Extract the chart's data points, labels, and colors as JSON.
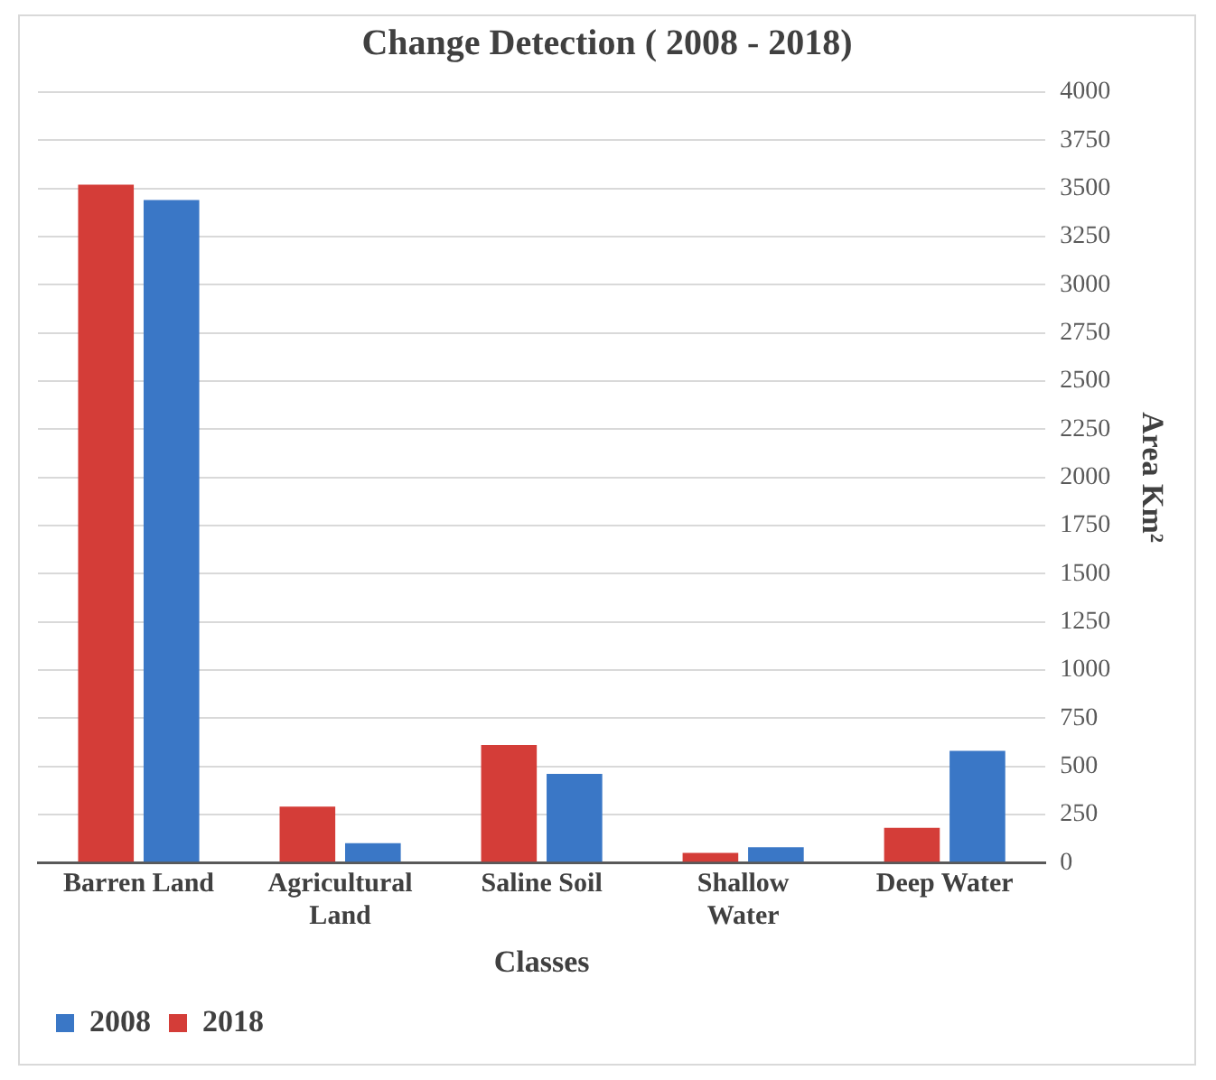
{
  "chart_data": {
    "type": "bar",
    "title": "Change Detection ( 2008 - 2018)",
    "xlabel": "Classes",
    "ylabel": "Area Km²",
    "categories": [
      "Barren Land",
      "Agricultural Land",
      "Saline Soil",
      "Shallow Water",
      "Deep Water"
    ],
    "series": [
      {
        "name": "2018",
        "color": "#d43d38",
        "values": [
          3520,
          290,
          610,
          50,
          180
        ]
      },
      {
        "name": "2008",
        "color": "#3a77c6",
        "values": [
          3440,
          100,
          460,
          80,
          580
        ]
      }
    ],
    "ylim": [
      0,
      4000
    ],
    "yticks": [
      0,
      250,
      500,
      750,
      1000,
      1250,
      1500,
      1750,
      2000,
      2250,
      2500,
      2750,
      3000,
      3250,
      3500,
      3750,
      4000
    ],
    "grid": "y",
    "legend": "bottom left"
  }
}
